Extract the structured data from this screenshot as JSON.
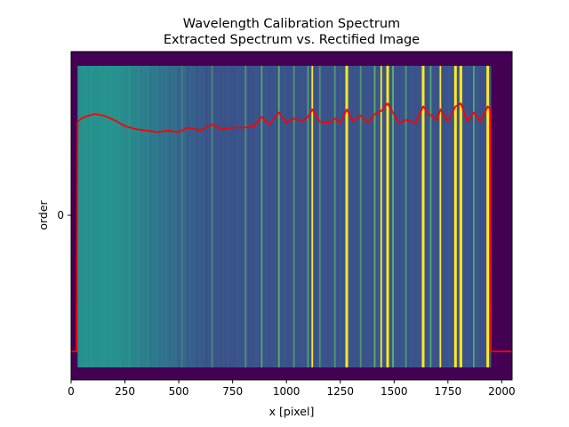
{
  "chart_data": {
    "type": "line",
    "title": "Wavelength Calibration Spectrum",
    "subtitle": "Extracted Spectrum vs. Rectified Image",
    "xlabel": "x [pixel]",
    "ylabel": "order",
    "xlim": [
      0,
      2048
    ],
    "x_ticks": [
      0,
      250,
      500,
      750,
      1000,
      1250,
      1500,
      1750,
      2000
    ],
    "y_ticks": [
      "0"
    ],
    "grid": false,
    "image_extent_x": [
      30,
      1950
    ],
    "colors": {
      "background": "#440154",
      "continuum_left": "#26948e",
      "continuum_right": "#3b528b",
      "emission_line": "#fde725",
      "line_mid": "#5ec962",
      "spectrum": "#ff0000"
    },
    "emission_lines": [
      {
        "x": 515,
        "strength": 0.35
      },
      {
        "x": 655,
        "strength": 0.45
      },
      {
        "x": 810,
        "strength": 0.55
      },
      {
        "x": 885,
        "strength": 0.7
      },
      {
        "x": 965,
        "strength": 0.8
      },
      {
        "x": 1035,
        "strength": 0.55
      },
      {
        "x": 1100,
        "strength": 0.65
      },
      {
        "x": 1120,
        "strength": 0.9
      },
      {
        "x": 1155,
        "strength": 0.5
      },
      {
        "x": 1225,
        "strength": 0.6
      },
      {
        "x": 1280,
        "strength": 1.0
      },
      {
        "x": 1345,
        "strength": 0.55
      },
      {
        "x": 1410,
        "strength": 0.8
      },
      {
        "x": 1440,
        "strength": 0.9
      },
      {
        "x": 1470,
        "strength": 1.0
      },
      {
        "x": 1495,
        "strength": 0.85
      },
      {
        "x": 1555,
        "strength": 0.6
      },
      {
        "x": 1635,
        "strength": 1.0
      },
      {
        "x": 1670,
        "strength": 0.7
      },
      {
        "x": 1715,
        "strength": 0.9
      },
      {
        "x": 1785,
        "strength": 1.0
      },
      {
        "x": 1810,
        "strength": 1.0
      },
      {
        "x": 1870,
        "strength": 0.7
      },
      {
        "x": 1935,
        "strength": 1.0
      }
    ],
    "series": [
      {
        "values": [
          [
            0,
            -0.9
          ],
          [
            25,
            -0.9
          ],
          [
            30,
            0.62
          ],
          [
            60,
            0.65
          ],
          [
            110,
            0.67
          ],
          [
            150,
            0.66
          ],
          [
            200,
            0.63
          ],
          [
            250,
            0.59
          ],
          [
            300,
            0.57
          ],
          [
            350,
            0.56
          ],
          [
            400,
            0.55
          ],
          [
            450,
            0.56
          ],
          [
            500,
            0.55
          ],
          [
            540,
            0.58
          ],
          [
            600,
            0.56
          ],
          [
            655,
            0.6
          ],
          [
            700,
            0.57
          ],
          [
            750,
            0.58
          ],
          [
            810,
            0.58
          ],
          [
            850,
            0.59
          ],
          [
            885,
            0.65
          ],
          [
            920,
            0.6
          ],
          [
            965,
            0.68
          ],
          [
            1000,
            0.61
          ],
          [
            1035,
            0.64
          ],
          [
            1070,
            0.62
          ],
          [
            1100,
            0.65
          ],
          [
            1120,
            0.7
          ],
          [
            1155,
            0.62
          ],
          [
            1200,
            0.61
          ],
          [
            1225,
            0.64
          ],
          [
            1250,
            0.61
          ],
          [
            1280,
            0.7
          ],
          [
            1310,
            0.62
          ],
          [
            1345,
            0.66
          ],
          [
            1380,
            0.61
          ],
          [
            1410,
            0.67
          ],
          [
            1440,
            0.69
          ],
          [
            1470,
            0.74
          ],
          [
            1495,
            0.68
          ],
          [
            1520,
            0.61
          ],
          [
            1555,
            0.63
          ],
          [
            1600,
            0.61
          ],
          [
            1635,
            0.72
          ],
          [
            1670,
            0.66
          ],
          [
            1700,
            0.63
          ],
          [
            1715,
            0.7
          ],
          [
            1750,
            0.62
          ],
          [
            1785,
            0.72
          ],
          [
            1810,
            0.74
          ],
          [
            1840,
            0.62
          ],
          [
            1870,
            0.68
          ],
          [
            1900,
            0.62
          ],
          [
            1935,
            0.72
          ],
          [
            1948,
            0.7
          ],
          [
            1950,
            -0.9
          ],
          [
            2048,
            -0.9
          ]
        ]
      }
    ]
  }
}
